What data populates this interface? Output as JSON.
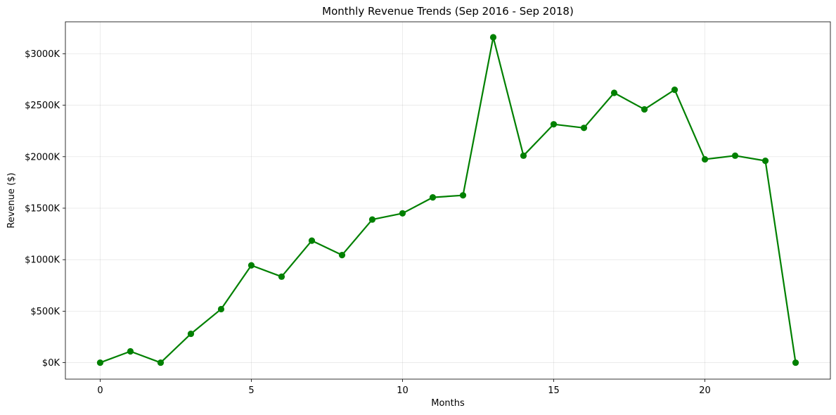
{
  "chart_data": {
    "type": "line",
    "title": "Monthly Revenue Trends (Sep 2016 - Sep 2018)",
    "xlabel": "Months",
    "ylabel": "Revenue ($)",
    "xlim": [
      -1.15,
      24.15
    ],
    "ylim": [
      -160,
      3310
    ],
    "x_ticks": [
      0,
      5,
      10,
      15,
      20
    ],
    "y_ticks": [
      0,
      500,
      1000,
      1500,
      2000,
      2500,
      3000
    ],
    "y_tick_labels": [
      "$0K",
      "$500K",
      "$1000K",
      "$1500K",
      "$2000K",
      "$2500K",
      "$3000K"
    ],
    "y_unit": "thousand dollars",
    "grid": true,
    "color": "#008000",
    "series": [
      {
        "x": [
          0,
          1,
          2,
          3,
          4,
          5,
          6,
          7,
          8,
          9,
          10,
          11,
          12,
          13,
          14,
          15,
          16,
          17,
          18,
          19,
          20,
          21,
          22,
          23
        ],
        "values": [
          0,
          110,
          0,
          280,
          520,
          945,
          835,
          1185,
          1045,
          1390,
          1450,
          1605,
          1625,
          3160,
          2010,
          2315,
          2280,
          2620,
          2460,
          2650,
          1975,
          2010,
          1960,
          0
        ]
      }
    ]
  }
}
